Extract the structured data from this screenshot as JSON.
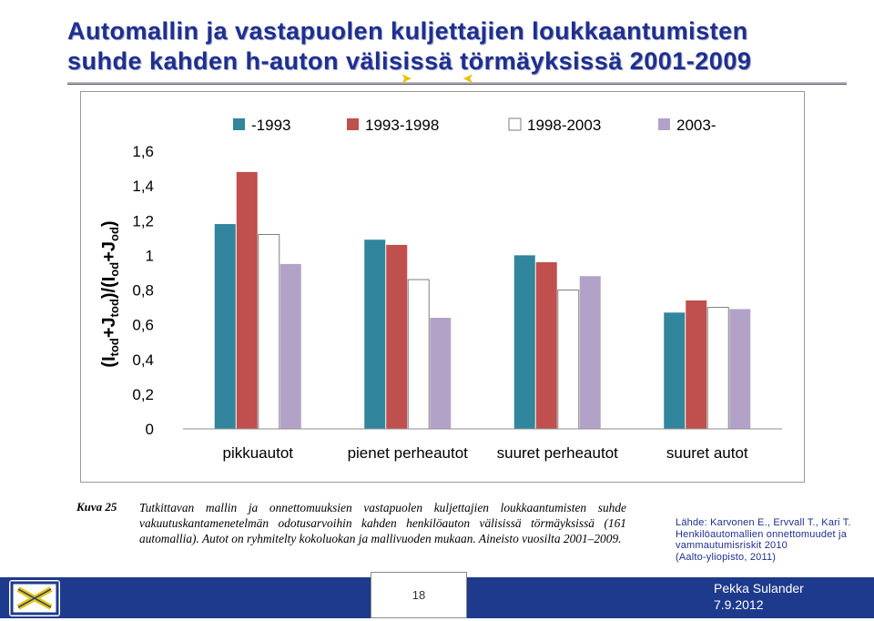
{
  "slide": {
    "title_line1": "Automallin ja vastapuolen kuljettajien loukkaantumisten",
    "title_line2": "suhde kahden h-auton välisissä törmäyksissä 2001-2009"
  },
  "chart_data": {
    "type": "bar",
    "categories": [
      "pikkuautot",
      "pienet perheautot",
      "suuret perheautot",
      "suuret autot"
    ],
    "series": [
      {
        "name": "-1993",
        "color": "#31859c",
        "values": [
          1.18,
          1.09,
          1.0,
          0.67
        ]
      },
      {
        "name": "1993-1998",
        "color": "#c0504d",
        "values": [
          1.48,
          1.06,
          0.96,
          0.74
        ]
      },
      {
        "name": "1998-2003",
        "color": "#ffffff",
        "values": [
          1.12,
          0.86,
          0.8,
          0.7
        ]
      },
      {
        "name": "2003-",
        "color": "#b3a2c7",
        "values": [
          0.95,
          0.64,
          0.88,
          0.69
        ]
      }
    ],
    "ylabel": "(Itod+Jtod)/(Iod+Jod)",
    "ylabel_parts": {
      "p1": "(I",
      "s1": "tod",
      "p2": "+J",
      "s2": "tod",
      "p3": ")/(I",
      "s3": "od",
      "p4": "+J",
      "s4": "od",
      "p5": ")"
    },
    "ylim": [
      0,
      1.6
    ],
    "yticks": [
      "0",
      "0,2",
      "0,4",
      "0,6",
      "0,8",
      "1",
      "1,2",
      "1,4",
      "1,6"
    ],
    "legend_position": "top",
    "grid": false
  },
  "caption": {
    "label": "Kuva 25",
    "text": "Tutkittavan mallin ja onnettomuuksien vastapuolen kuljettajien loukkaantumisten suhde vakuutuskantamenetelmän odotusarvoihin kahden henkilöauton välisissä törmäyksissä (161 automallia). Autot on ryhmitelty kokoluokan ja mallivuoden mukaan. Aineisto vuosilta 2001–2009."
  },
  "source": {
    "line1": "Lähde: Karvonen E., Ervvall T., Kari T.",
    "line2": "Henkilöautomallien onnettomuudet ja",
    "line3": "vammautumisriskit 2010",
    "line4": "(Aalto-yliopisto, 2011)"
  },
  "footer": {
    "page_number": "18",
    "author": "Pekka Sulander",
    "date": "7.9.2012",
    "colors": {
      "bar": "#1e3a8c",
      "logo_accent": "#e6c200"
    }
  },
  "icons": [
    "arrow-right-icon",
    "arrow-left-icon",
    "logo-icon"
  ]
}
